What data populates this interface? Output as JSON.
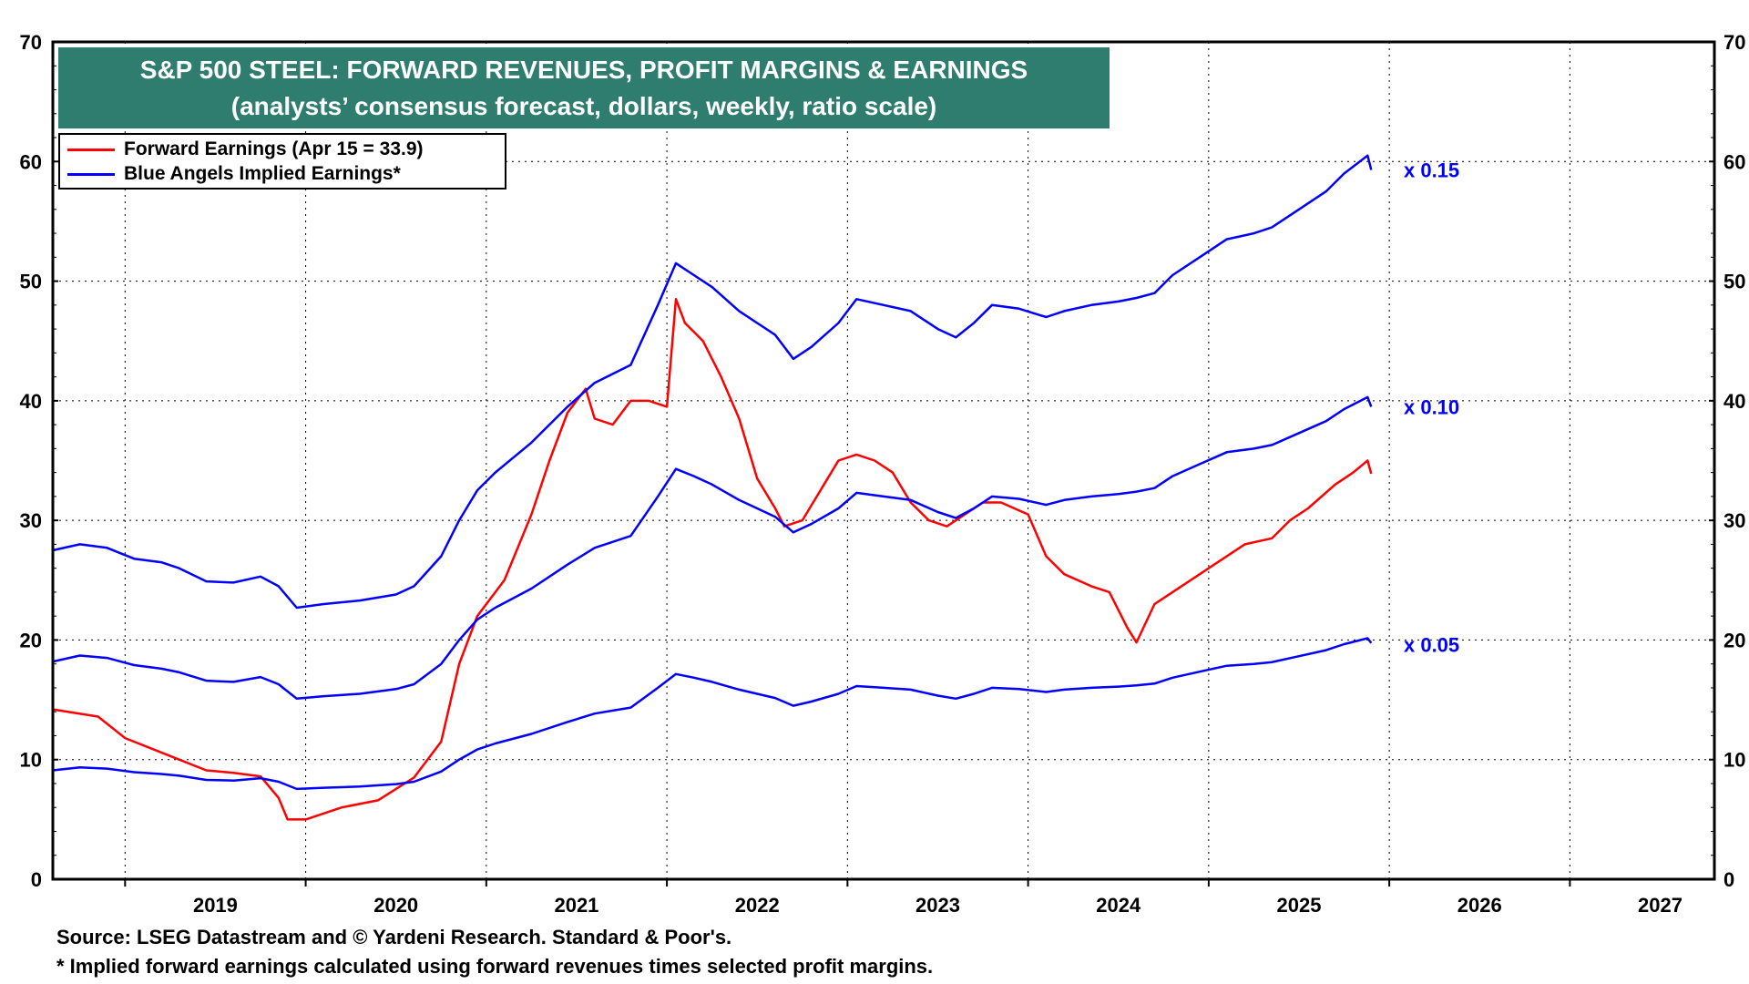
{
  "title": {
    "line1": "S&P 500 STEEL: FORWARD REVENUES, PROFIT MARGINS & EARNINGS",
    "line2": "(analysts’ consensus forecast, dollars, weekly, ratio scale)"
  },
  "legend": [
    {
      "label": "Forward Earnings (Apr 15 = 33.9)",
      "color": "#ff0000"
    },
    {
      "label": "Blue Angels Implied Earnings*",
      "color": "#0000ff"
    }
  ],
  "footer": {
    "source": "Source: LSEG Datastream and © Yardeni Research. Standard & Poor's.",
    "note": "* Implied forward earnings calculated using forward revenues times selected profit margins."
  },
  "chart_data": {
    "type": "line",
    "title": "S&P 500 STEEL: FORWARD REVENUES, PROFIT MARGINS & EARNINGS",
    "subtitle": "(analysts’ consensus forecast, dollars, weekly, ratio scale)",
    "x_range": [
      2018.6,
      2027.8
    ],
    "year_labels": [
      "2019",
      "2020",
      "2021",
      "2022",
      "2023",
      "2024",
      "2025",
      "2026",
      "2027"
    ],
    "y_ticks_left": [
      "0",
      "10",
      "20",
      "30",
      "40",
      "50",
      "60",
      "70"
    ],
    "y_ticks_right": [
      "0",
      "10",
      "20",
      "30",
      "40",
      "50",
      "60",
      "70"
    ],
    "ylim": [
      0,
      70
    ],
    "grid": true,
    "series": [
      {
        "name": "Forward Earnings",
        "color": "#ff0000",
        "points": [
          [
            2018.6,
            14.2
          ],
          [
            2018.85,
            13.6
          ],
          [
            2019.0,
            11.8
          ],
          [
            2019.25,
            10.3
          ],
          [
            2019.45,
            9.1
          ],
          [
            2019.6,
            8.9
          ],
          [
            2019.75,
            8.6
          ],
          [
            2019.85,
            6.8
          ],
          [
            2019.9,
            5.0
          ],
          [
            2020.0,
            5.0
          ],
          [
            2020.2,
            6.0
          ],
          [
            2020.4,
            6.6
          ],
          [
            2020.6,
            8.5
          ],
          [
            2020.75,
            11.5
          ],
          [
            2020.85,
            18.0
          ],
          [
            2020.95,
            22.0
          ],
          [
            2021.1,
            25.0
          ],
          [
            2021.25,
            30.5
          ],
          [
            2021.35,
            35.0
          ],
          [
            2021.45,
            39.0
          ],
          [
            2021.55,
            41.0
          ],
          [
            2021.6,
            38.5
          ],
          [
            2021.7,
            38.0
          ],
          [
            2021.8,
            40.0
          ],
          [
            2021.9,
            40.0
          ],
          [
            2022.0,
            39.5
          ],
          [
            2022.05,
            48.5
          ],
          [
            2022.1,
            46.5
          ],
          [
            2022.2,
            45.0
          ],
          [
            2022.3,
            42.0
          ],
          [
            2022.4,
            38.5
          ],
          [
            2022.5,
            33.5
          ],
          [
            2022.6,
            31.0
          ],
          [
            2022.65,
            29.5
          ],
          [
            2022.75,
            30.0
          ],
          [
            2022.85,
            32.5
          ],
          [
            2022.95,
            35.0
          ],
          [
            2023.05,
            35.5
          ],
          [
            2023.15,
            35.0
          ],
          [
            2023.25,
            34.0
          ],
          [
            2023.35,
            31.5
          ],
          [
            2023.45,
            30.0
          ],
          [
            2023.55,
            29.5
          ],
          [
            2023.65,
            30.5
          ],
          [
            2023.75,
            31.5
          ],
          [
            2023.85,
            31.5
          ],
          [
            2024.0,
            30.5
          ],
          [
            2024.1,
            27.0
          ],
          [
            2024.2,
            25.5
          ],
          [
            2024.35,
            24.5
          ],
          [
            2024.45,
            24.0
          ],
          [
            2024.55,
            21.0
          ],
          [
            2024.6,
            19.8
          ],
          [
            2024.7,
            23.0
          ],
          [
            2024.8,
            24.0
          ],
          [
            2024.95,
            25.5
          ],
          [
            2025.05,
            26.5
          ],
          [
            2025.2,
            28.0
          ],
          [
            2025.35,
            28.5
          ],
          [
            2025.45,
            30.0
          ],
          [
            2025.55,
            31.0
          ],
          [
            2025.7,
            33.0
          ],
          [
            2025.8,
            34.0
          ],
          [
            2025.88,
            35.0
          ],
          [
            2025.9,
            33.9
          ]
        ]
      },
      {
        "name": "Blue Angels Implied Earnings x 0.15",
        "color": "#0000ff",
        "points": [
          [
            2018.6,
            27.5
          ],
          [
            2018.75,
            28.0
          ],
          [
            2018.9,
            27.7
          ],
          [
            2019.05,
            26.8
          ],
          [
            2019.2,
            26.5
          ],
          [
            2019.3,
            26.0
          ],
          [
            2019.45,
            24.9
          ],
          [
            2019.6,
            24.8
          ],
          [
            2019.75,
            25.3
          ],
          [
            2019.85,
            24.5
          ],
          [
            2019.95,
            22.7
          ],
          [
            2020.1,
            23.0
          ],
          [
            2020.3,
            23.3
          ],
          [
            2020.5,
            23.8
          ],
          [
            2020.6,
            24.5
          ],
          [
            2020.75,
            27.0
          ],
          [
            2020.85,
            30.0
          ],
          [
            2020.95,
            32.5
          ],
          [
            2021.05,
            34.0
          ],
          [
            2021.25,
            36.5
          ],
          [
            2021.45,
            39.5
          ],
          [
            2021.6,
            41.5
          ],
          [
            2021.8,
            43.0
          ],
          [
            2021.95,
            48.0
          ],
          [
            2022.05,
            51.5
          ],
          [
            2022.15,
            50.5
          ],
          [
            2022.25,
            49.5
          ],
          [
            2022.4,
            47.5
          ],
          [
            2022.5,
            46.5
          ],
          [
            2022.6,
            45.5
          ],
          [
            2022.7,
            43.5
          ],
          [
            2022.8,
            44.5
          ],
          [
            2022.95,
            46.5
          ],
          [
            2023.05,
            48.5
          ],
          [
            2023.2,
            48.0
          ],
          [
            2023.35,
            47.5
          ],
          [
            2023.5,
            46.0
          ],
          [
            2023.6,
            45.3
          ],
          [
            2023.7,
            46.5
          ],
          [
            2023.8,
            48.0
          ],
          [
            2023.95,
            47.7
          ],
          [
            2024.1,
            47.0
          ],
          [
            2024.2,
            47.5
          ],
          [
            2024.35,
            48.0
          ],
          [
            2024.5,
            48.3
          ],
          [
            2024.6,
            48.6
          ],
          [
            2024.7,
            49.0
          ],
          [
            2024.8,
            50.5
          ],
          [
            2024.95,
            52.0
          ],
          [
            2025.1,
            53.5
          ],
          [
            2025.25,
            54.0
          ],
          [
            2025.35,
            54.5
          ],
          [
            2025.5,
            56.0
          ],
          [
            2025.65,
            57.5
          ],
          [
            2025.75,
            59.0
          ],
          [
            2025.88,
            60.5
          ],
          [
            2025.9,
            59.3
          ]
        ]
      },
      {
        "name": "Blue Angels Implied Earnings x 0.10",
        "color": "#0000ff",
        "points": [
          [
            2018.6,
            18.2
          ],
          [
            2018.75,
            18.7
          ],
          [
            2018.9,
            18.5
          ],
          [
            2019.05,
            17.9
          ],
          [
            2019.2,
            17.6
          ],
          [
            2019.3,
            17.3
          ],
          [
            2019.45,
            16.6
          ],
          [
            2019.6,
            16.5
          ],
          [
            2019.75,
            16.9
          ],
          [
            2019.85,
            16.3
          ],
          [
            2019.95,
            15.1
          ],
          [
            2020.1,
            15.3
          ],
          [
            2020.3,
            15.5
          ],
          [
            2020.5,
            15.9
          ],
          [
            2020.6,
            16.3
          ],
          [
            2020.75,
            18.0
          ],
          [
            2020.85,
            20.0
          ],
          [
            2020.95,
            21.7
          ],
          [
            2021.05,
            22.7
          ],
          [
            2021.25,
            24.3
          ],
          [
            2021.45,
            26.3
          ],
          [
            2021.6,
            27.7
          ],
          [
            2021.8,
            28.7
          ],
          [
            2021.95,
            32.0
          ],
          [
            2022.05,
            34.3
          ],
          [
            2022.15,
            33.7
          ],
          [
            2022.25,
            33.0
          ],
          [
            2022.4,
            31.7
          ],
          [
            2022.5,
            31.0
          ],
          [
            2022.6,
            30.3
          ],
          [
            2022.7,
            29.0
          ],
          [
            2022.8,
            29.7
          ],
          [
            2022.95,
            31.0
          ],
          [
            2023.05,
            32.3
          ],
          [
            2023.2,
            32.0
          ],
          [
            2023.35,
            31.7
          ],
          [
            2023.5,
            30.7
          ],
          [
            2023.6,
            30.2
          ],
          [
            2023.7,
            31.0
          ],
          [
            2023.8,
            32.0
          ],
          [
            2023.95,
            31.8
          ],
          [
            2024.1,
            31.3
          ],
          [
            2024.2,
            31.7
          ],
          [
            2024.35,
            32.0
          ],
          [
            2024.5,
            32.2
          ],
          [
            2024.6,
            32.4
          ],
          [
            2024.7,
            32.7
          ],
          [
            2024.8,
            33.7
          ],
          [
            2024.95,
            34.7
          ],
          [
            2025.1,
            35.7
          ],
          [
            2025.25,
            36.0
          ],
          [
            2025.35,
            36.3
          ],
          [
            2025.5,
            37.3
          ],
          [
            2025.65,
            38.3
          ],
          [
            2025.75,
            39.3
          ],
          [
            2025.88,
            40.3
          ],
          [
            2025.9,
            39.5
          ]
        ]
      },
      {
        "name": "Blue Angels Implied Earnings x 0.05",
        "color": "#0000ff",
        "points": [
          [
            2018.6,
            9.1
          ],
          [
            2018.75,
            9.35
          ],
          [
            2018.9,
            9.25
          ],
          [
            2019.05,
            8.95
          ],
          [
            2019.2,
            8.8
          ],
          [
            2019.3,
            8.65
          ],
          [
            2019.45,
            8.3
          ],
          [
            2019.6,
            8.25
          ],
          [
            2019.75,
            8.45
          ],
          [
            2019.85,
            8.15
          ],
          [
            2019.95,
            7.55
          ],
          [
            2020.1,
            7.65
          ],
          [
            2020.3,
            7.75
          ],
          [
            2020.5,
            7.95
          ],
          [
            2020.6,
            8.15
          ],
          [
            2020.75,
            9.0
          ],
          [
            2020.85,
            10.0
          ],
          [
            2020.95,
            10.85
          ],
          [
            2021.05,
            11.35
          ],
          [
            2021.25,
            12.15
          ],
          [
            2021.45,
            13.15
          ],
          [
            2021.6,
            13.85
          ],
          [
            2021.8,
            14.35
          ],
          [
            2021.95,
            16.0
          ],
          [
            2022.05,
            17.15
          ],
          [
            2022.15,
            16.85
          ],
          [
            2022.25,
            16.5
          ],
          [
            2022.4,
            15.85
          ],
          [
            2022.5,
            15.5
          ],
          [
            2022.6,
            15.15
          ],
          [
            2022.7,
            14.5
          ],
          [
            2022.8,
            14.85
          ],
          [
            2022.95,
            15.5
          ],
          [
            2023.05,
            16.15
          ],
          [
            2023.2,
            16.0
          ],
          [
            2023.35,
            15.85
          ],
          [
            2023.5,
            15.35
          ],
          [
            2023.6,
            15.1
          ],
          [
            2023.7,
            15.5
          ],
          [
            2023.8,
            16.0
          ],
          [
            2023.95,
            15.9
          ],
          [
            2024.1,
            15.65
          ],
          [
            2024.2,
            15.85
          ],
          [
            2024.35,
            16.0
          ],
          [
            2024.5,
            16.1
          ],
          [
            2024.6,
            16.2
          ],
          [
            2024.7,
            16.35
          ],
          [
            2024.8,
            16.85
          ],
          [
            2024.95,
            17.35
          ],
          [
            2025.1,
            17.85
          ],
          [
            2025.25,
            18.0
          ],
          [
            2025.35,
            18.15
          ],
          [
            2025.5,
            18.65
          ],
          [
            2025.65,
            19.15
          ],
          [
            2025.75,
            19.65
          ],
          [
            2025.88,
            20.15
          ],
          [
            2025.9,
            19.75
          ]
        ]
      }
    ],
    "annotations": [
      {
        "text": "x 0.15",
        "x": 2026.08,
        "y": 59.3
      },
      {
        "text": "x 0.10",
        "x": 2026.08,
        "y": 39.5
      },
      {
        "text": "x 0.05",
        "x": 2026.08,
        "y": 19.6
      }
    ]
  }
}
